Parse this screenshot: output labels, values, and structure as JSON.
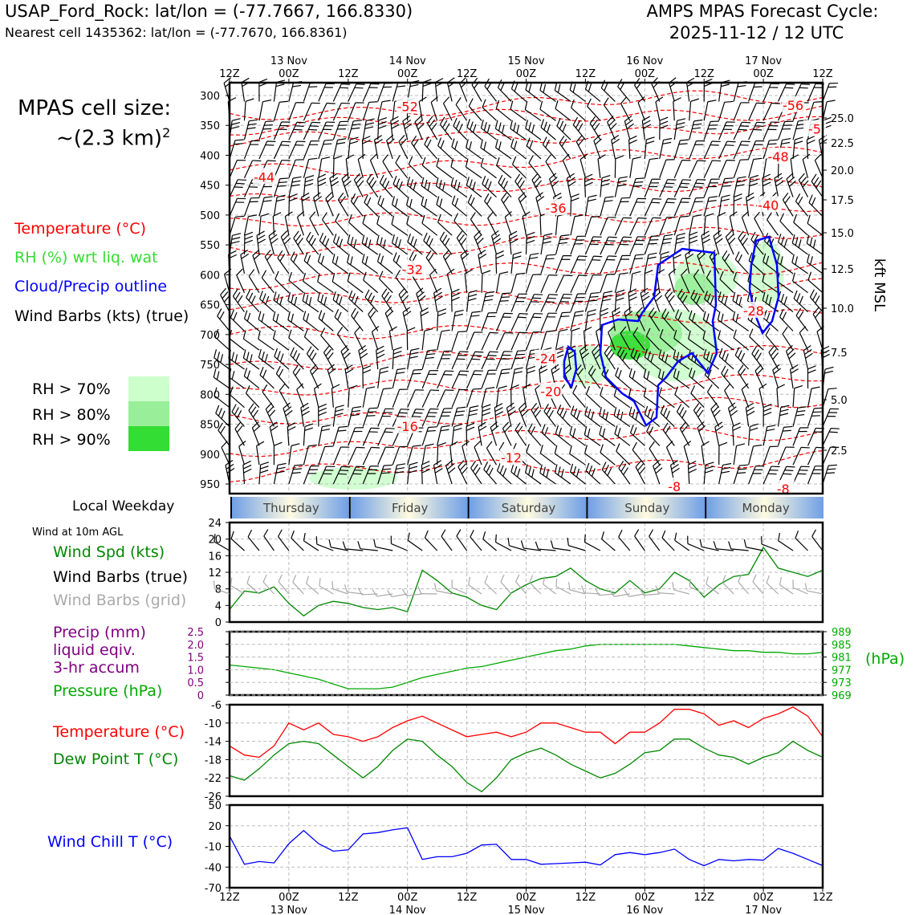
{
  "header": {
    "station_line": "USAP_Ford_Rock: lat/lon = (-77.7667, 166.8330)",
    "cell_line": "Nearest cell 1435362: lat/lon = (-77.7670, 166.8361)",
    "cycle_line1": "AMPS MPAS Forecast Cycle:",
    "cycle_line2": "2025-11-12 / 12 UTC"
  },
  "cell_size": {
    "line1": "MPAS cell size:",
    "line2": "~(2.3 km)",
    "sup": "2"
  },
  "legend": {
    "temperature": "Temperature (°C)",
    "rh": "RH (%) wrt liq. wat",
    "cloud": "Cloud/Precip outline",
    "barbs": "Wind Barbs (kts) (true)",
    "rh70": "RH > 70%",
    "rh80": "RH > 80%",
    "rh90": "RH > 90%"
  },
  "colors": {
    "temperature": "#ff0000",
    "rh_label": "#33dd33",
    "cloud": "#0000ff",
    "rh70": "#ccffcc",
    "rh80": "#99ee99",
    "rh90": "#33dd33",
    "wind_speed": "#008800",
    "barbs_grid": "#aaaaaa",
    "precip": "#800080",
    "pressure": "#00aa00",
    "dewpoint": "#008800",
    "windchill": "#0000ff",
    "weekday_a": "#6f9fe6",
    "weekday_b": "#fffbe0"
  },
  "time_axis": {
    "tick_labels": [
      "12Z",
      "00Z",
      "12Z",
      "00Z",
      "12Z",
      "00Z",
      "12Z",
      "00Z",
      "12Z",
      "00Z",
      "12Z"
    ],
    "day_labels": [
      "13 Nov",
      "14 Nov",
      "15 Nov",
      "16 Nov",
      "17 Nov"
    ]
  },
  "weekday": {
    "label": "Local Weekday",
    "days": [
      "Thursday",
      "Friday",
      "Saturday",
      "Sunday",
      "Monday"
    ]
  },
  "wind10": {
    "title": "Wind at 10m AGL",
    "speed_label": "Wind Spd (kts)",
    "barbs_true_label": "Wind Barbs (true)",
    "barbs_grid_label": "Wind Barbs (grid)"
  },
  "precip_pressure": {
    "precip_label_1": "Precip (mm)",
    "precip_label_2": "liquid eqiv.",
    "precip_label_3": "3-hr accum",
    "pressure_label": "Pressure (hPa)",
    "right_unit": "(hPa)"
  },
  "temp_panel": {
    "temp_label": "Temperature (°C)",
    "dew_label": "Dew Point T (°C)"
  },
  "chill_panel": {
    "label": "Wind Chill T (°C)"
  },
  "chart_data": [
    {
      "type": "heatmap",
      "name": "cross-section",
      "x_unit": "hours since 2025-11-12 12Z",
      "x_range": [
        0,
        120
      ],
      "y_left_label": "",
      "y_left_ticks": [
        300,
        350,
        400,
        450,
        500,
        550,
        600,
        650,
        700,
        750,
        800,
        850,
        900,
        950
      ],
      "y_right_label": "kft MSL",
      "y_right_ticks": [
        "25.0",
        "22.5",
        "20.0",
        "17.5",
        "15.0",
        "12.5",
        "10.0",
        "7.5",
        "5.0",
        "2.5"
      ],
      "isotherm_labels": [
        {
          "text": "-52",
          "t": 36,
          "p": 318
        },
        {
          "text": "-56",
          "t": 114,
          "p": 316
        },
        {
          "text": "-5",
          "t": 120,
          "p": 356
        },
        {
          "text": "-48",
          "t": 111,
          "p": 402
        },
        {
          "text": "-44",
          "t": 7,
          "p": 436
        },
        {
          "text": "-40",
          "t": 109,
          "p": 483
        },
        {
          "text": "-36",
          "t": 66,
          "p": 488
        },
        {
          "text": "-32",
          "t": 37,
          "p": 591
        },
        {
          "text": "-24",
          "t": 64,
          "p": 740
        },
        {
          "text": "-20",
          "t": 65,
          "p": 795
        },
        {
          "text": "-16",
          "t": 36,
          "p": 853
        },
        {
          "text": "-12",
          "t": 57,
          "p": 906
        },
        {
          "text": "-8",
          "t": 90,
          "p": 954
        },
        {
          "text": "-8",
          "t": 112,
          "p": 958
        },
        {
          "text": "-28",
          "t": 106,
          "p": 660
        }
      ]
    },
    {
      "type": "line",
      "name": "wind-speed-10m",
      "x_unit": "hours since 2025-11-12 12Z",
      "x": [
        0,
        3,
        6,
        9,
        12,
        15,
        18,
        21,
        24,
        27,
        30,
        33,
        36,
        39,
        42,
        45,
        48,
        51,
        54,
        57,
        60,
        63,
        66,
        69,
        72,
        75,
        78,
        81,
        84,
        87,
        90,
        93,
        96,
        99,
        102,
        105,
        108,
        111,
        114,
        117,
        120
      ],
      "values": [
        3,
        7.5,
        7,
        8.5,
        4.5,
        1.5,
        4,
        5,
        4.5,
        3.5,
        3,
        3.5,
        2.5,
        12.5,
        10,
        7,
        6,
        4,
        3,
        7,
        9,
        10.5,
        11,
        13,
        10,
        8,
        7,
        10,
        7,
        8,
        12,
        10,
        6,
        9,
        11,
        11.5,
        18,
        13,
        12,
        11,
        12.5
      ],
      "ylim": [
        0,
        24
      ],
      "yticks": [
        0,
        4,
        8,
        12,
        16,
        20,
        24
      ]
    },
    {
      "type": "line",
      "name": "pressure",
      "x": [
        0,
        3,
        6,
        9,
        12,
        15,
        18,
        21,
        24,
        27,
        30,
        33,
        36,
        39,
        42,
        45,
        48,
        51,
        54,
        57,
        60,
        63,
        66,
        69,
        72,
        75,
        78,
        81,
        84,
        87,
        90,
        93,
        96,
        99,
        102,
        105,
        108,
        111,
        114,
        117,
        120
      ],
      "values": [
        978.5,
        978,
        977.5,
        977,
        976,
        975,
        974,
        972.5,
        971,
        971,
        971,
        971.5,
        973,
        974.5,
        975.5,
        976.5,
        977.5,
        978,
        979,
        980,
        981,
        982,
        983,
        983.5,
        984.5,
        985,
        985,
        985,
        985,
        985,
        985,
        984.5,
        984,
        983.5,
        983,
        983,
        982.5,
        982.5,
        982,
        982,
        982.5
      ],
      "ylim": [
        969,
        989
      ],
      "yticks_right": [
        969,
        973,
        977,
        981,
        985,
        989
      ],
      "yticks_left": [
        "0",
        "0.5",
        "1.0",
        "1.5",
        "2.0",
        "2.5"
      ]
    },
    {
      "type": "line",
      "name": "temperature-dewpoint",
      "x": [
        0,
        3,
        6,
        9,
        12,
        15,
        18,
        21,
        24,
        27,
        30,
        33,
        36,
        39,
        42,
        45,
        48,
        51,
        54,
        57,
        60,
        63,
        66,
        69,
        72,
        75,
        78,
        81,
        84,
        87,
        90,
        93,
        96,
        99,
        102,
        105,
        108,
        111,
        114,
        117,
        120
      ],
      "series": [
        {
          "name": "Temperature (°C)",
          "values": [
            -15,
            -17,
            -17.5,
            -15,
            -10,
            -11.5,
            -10,
            -12.5,
            -13,
            -14,
            -13,
            -11,
            -9.5,
            -8.5,
            -10,
            -11.5,
            -13,
            -12.5,
            -12,
            -13,
            -12,
            -10,
            -10,
            -11,
            -12,
            -12,
            -14.5,
            -12,
            -12,
            -10,
            -7,
            -7,
            -8,
            -10.5,
            -9.5,
            -11,
            -9,
            -8,
            -6.5,
            -8.5,
            -13
          ]
        },
        {
          "name": "Dew Point T (°C)",
          "values": [
            -21.5,
            -22.5,
            -20,
            -17,
            -14.5,
            -14,
            -14.5,
            -17,
            -19.5,
            -22,
            -19.5,
            -16,
            -13.5,
            -14,
            -17,
            -19.5,
            -23,
            -25,
            -22,
            -18,
            -16.5,
            -15.5,
            -17,
            -19,
            -20.5,
            -22,
            -21,
            -19,
            -16.5,
            -16,
            -13.5,
            -13.5,
            -15.5,
            -17,
            -17.5,
            -19,
            -17.5,
            -16.5,
            -14,
            -16,
            -17.5
          ]
        }
      ],
      "ylim": [
        -26,
        -6
      ],
      "yticks": [
        -26,
        -22,
        -18,
        -14,
        -10,
        -6
      ]
    },
    {
      "type": "line",
      "name": "wind-chill",
      "x": [
        0,
        3,
        6,
        9,
        12,
        15,
        18,
        21,
        24,
        27,
        30,
        33,
        36,
        39,
        42,
        45,
        48,
        51,
        54,
        57,
        60,
        63,
        66,
        69,
        72,
        75,
        78,
        81,
        84,
        87,
        90,
        93,
        96,
        99,
        102,
        105,
        108,
        111,
        114,
        117,
        120
      ],
      "values": [
        5,
        -36,
        -32,
        -34,
        -6,
        13,
        -6,
        -17,
        -15,
        8,
        10,
        14,
        17,
        -29,
        -25,
        -25,
        -20,
        -8,
        -7,
        -29,
        -29,
        -36,
        -35,
        -34,
        -33,
        -37,
        -22,
        -19,
        -22,
        -19,
        -14,
        -29,
        -38,
        -29,
        -31,
        -29,
        -30,
        -13,
        -20,
        -29,
        -38
      ],
      "ylim": [
        -70,
        50
      ],
      "yticks": [
        -70,
        -40,
        -10,
        20,
        50
      ]
    }
  ]
}
